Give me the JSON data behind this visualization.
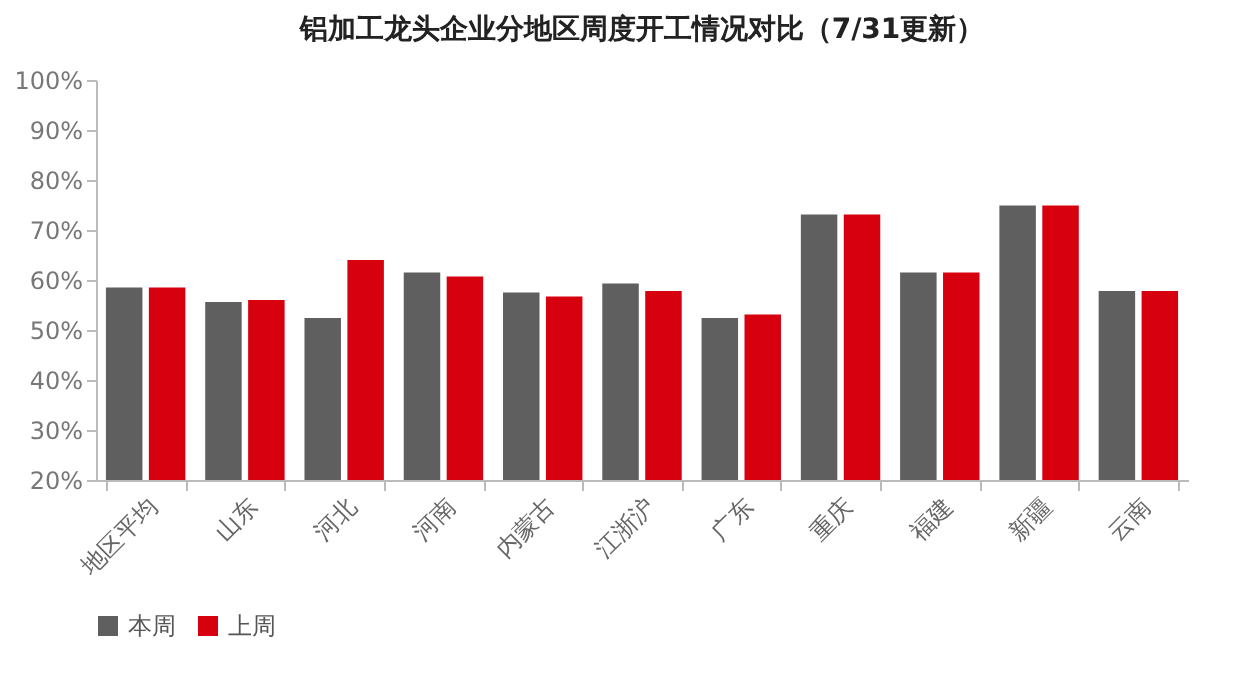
{
  "chart_data": {
    "type": "bar",
    "title": "铝加工龙头企业分地区周度开工情况对比（7/31更新）",
    "categories": [
      "地区平均",
      "山东",
      "河北",
      "河南",
      "内蒙古",
      "江浙沪",
      "广东",
      "重庆",
      "福建",
      "新疆",
      "云南"
    ],
    "series": [
      {
        "name": "本周",
        "color": "#5f5f5f",
        "values": [
          58.5,
          55.6,
          52.4,
          61.5,
          57.5,
          59.3,
          52.4,
          73.1,
          61.5,
          74.9,
          57.8
        ]
      },
      {
        "name": "上周",
        "color": "#d7000f",
        "values": [
          58.5,
          56.0,
          64.0,
          60.7,
          56.7,
          57.8,
          53.1,
          73.1,
          61.5,
          74.9,
          57.8
        ]
      }
    ],
    "ylim": [
      20,
      100
    ],
    "yticks": [
      {
        "value": 20,
        "label": "20%"
      },
      {
        "value": 30,
        "label": "30%"
      },
      {
        "value": 40,
        "label": "40%"
      },
      {
        "value": 50,
        "label": "50%"
      },
      {
        "value": 60,
        "label": "60%"
      },
      {
        "value": 70,
        "label": "70%"
      },
      {
        "value": 80,
        "label": "80%"
      },
      {
        "value": 90,
        "label": "90%"
      },
      {
        "value": 100,
        "label": "100%"
      }
    ],
    "grid": false,
    "legend": "bottom"
  }
}
